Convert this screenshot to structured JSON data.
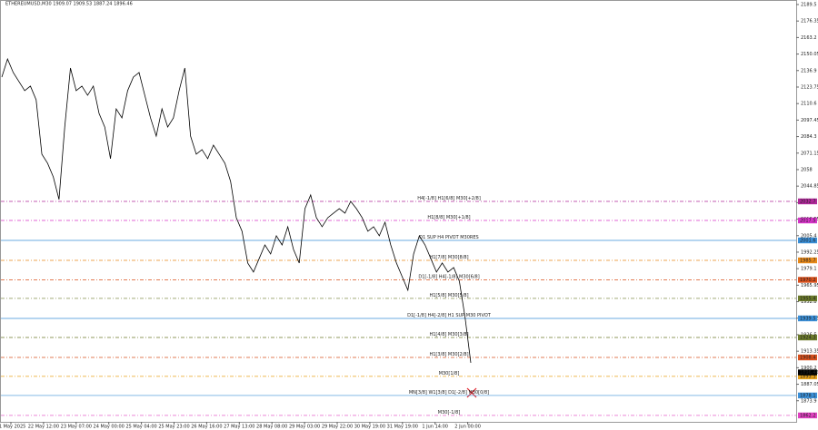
{
  "chart_data": {
    "type": "line",
    "title": "ETHEREUMUSD,M30 1909.07 1909.53 1887.24 1896.46",
    "color": "#000000",
    "values": [
      2131.7,
      2146.1,
      2135.3,
      2128.1,
      2120.9,
      2124.5,
      2113.6,
      2070.3,
      2063.1,
      2052.2,
      2034.2,
      2091.9,
      2138.9,
      2120.9,
      2124.5,
      2117.2,
      2124.5,
      2102.8,
      2091.9,
      2066.7,
      2106.4,
      2099.2,
      2120.9,
      2131.7,
      2135.3,
      2117.2,
      2099.2,
      2084.7,
      2106.4,
      2091.9,
      2099.2,
      2120.9,
      2138.9,
      2084.7,
      2070.3,
      2073.9,
      2066.7,
      2077.5,
      2070.3,
      2063.1,
      2048.6,
      2019.7,
      2008.9,
      1983.6,
      1976.4,
      1987.2,
      1998.0,
      1990.8,
      2005.3,
      1998.0,
      2012.5,
      1994.4,
      1983.6,
      2026.9,
      2037.8,
      2019.7,
      2012.5,
      2019.7,
      2023.3,
      2026.9,
      2023.3,
      2032.7,
      2026.9,
      2019.7,
      2008.9,
      2012.5,
      2005.3,
      2016.1,
      1998.0,
      1983.6,
      1972.7,
      1961.9,
      1990.8,
      2005.3,
      1998.0,
      1987.2,
      1976.4,
      1983.6,
      1976.4,
      1980.0,
      1969.1,
      1940.2,
      1904.1
    ],
    "ylim": [
      1857.1,
      2193.1
    ],
    "yticks": [
      2189.5,
      2176.35,
      2163.2,
      2150.05,
      2136.9,
      2123.75,
      2110.6,
      2097.45,
      2084.3,
      2071.15,
      2058.0,
      2044.85,
      2031.7,
      2018.55,
      2005.4,
      1992.25,
      1979.1,
      1965.95,
      1952.8,
      1939.65,
      1926.5,
      1913.35,
      1900.2,
      1887.05,
      1873.9
    ],
    "xlabels": [
      "21 May 2025",
      "22 May 12:00",
      "23 May 07:00",
      "24 May 00:00",
      "25 May 04:00",
      "25 May 23:00",
      "26 May 16:00",
      "27 May 13:00",
      "28 May 08:00",
      "29 May 03:00",
      "29 May 22:00",
      "30 May 19:00",
      "31 May 19:00",
      "1 Jun 14:00",
      "2 Jun 00:00"
    ],
    "last_price": 1896.46,
    "levels": [
      {
        "label": "H4[-1/8] H1[6/8] M30[+2/8]",
        "value": 2032.7,
        "color": "#b0289a",
        "dash": true
      },
      {
        "label": "H1[8/8] M30[+1/8]",
        "value": 2017.5,
        "color": "#d633c8",
        "dash": true
      },
      {
        "label": "D1 SUP H4 PIVOT M30RES",
        "value": 2001.6,
        "color": "#3a8fd8",
        "dash": false
      },
      {
        "label": "H1[7/8] M30[8/8]",
        "value": 1985.7,
        "color": "#e8891a",
        "dash": true
      },
      {
        "label": "D1[-1/8] H4[-1/8] M30[6/8]",
        "value": 1970.2,
        "color": "#d9501c",
        "dash": true
      },
      {
        "label": "H1[5/8] M30[5/8]",
        "value": 1955.4,
        "color": "#6b7a2a",
        "dash": true
      },
      {
        "label": "D1[-1/8] H4[-2/8] H1 SUP M30 PIVOT",
        "value": 1939.5,
        "color": "#3a8fd8",
        "dash": false
      },
      {
        "label": "H1[4/8] M30[3/8]",
        "value": 1924.3,
        "color": "#6b7a2a",
        "dash": true
      },
      {
        "label": "H1[3/8] M30[2/8]",
        "value": 1908.4,
        "color": "#d9501c",
        "dash": true
      },
      {
        "label": "M30[1/8]",
        "value": 1893.3,
        "color": "#e8a21a",
        "dash": true
      },
      {
        "label": "MN[3/8] W1[3/8] D1[-2/8] M30[0/8]",
        "value": 1878.1,
        "color": "#3a8fd8",
        "dash": false
      },
      {
        "label": "M30[-1/8]",
        "value": 1862.2,
        "color": "#e040c0",
        "dash": true
      }
    ]
  }
}
